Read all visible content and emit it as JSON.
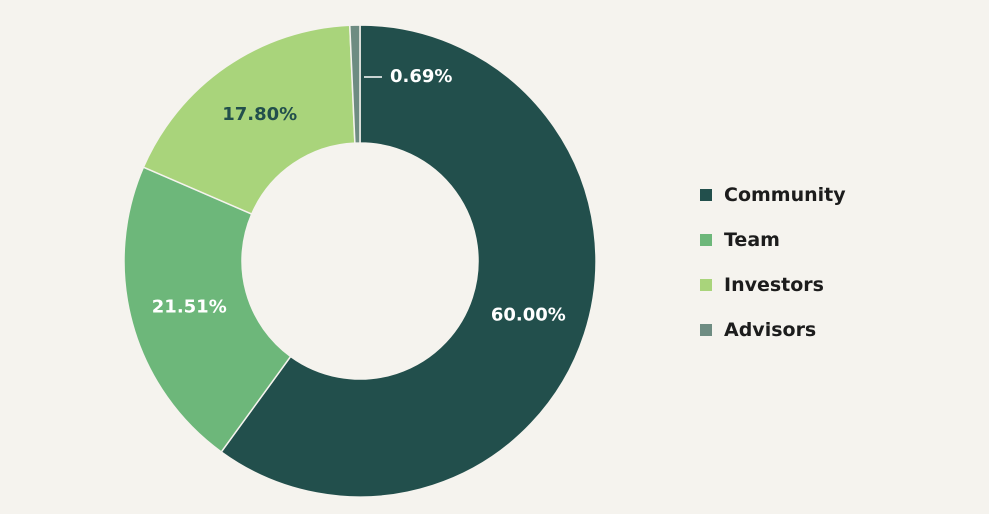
{
  "chart_data": {
    "type": "pie",
    "donut": true,
    "categories": [
      "Community",
      "Team",
      "Investors",
      "Advisors"
    ],
    "values": [
      60.0,
      21.51,
      17.8,
      0.69
    ],
    "data_labels": [
      "60.00%",
      "21.51%",
      "17.80%",
      "0.69%"
    ],
    "colors": [
      "#224f4c",
      "#6db77a",
      "#a9d47b",
      "#6e8c82"
    ],
    "label_colors": [
      "#ffffff",
      "#ffffff",
      "#224f4c",
      "#ffffff"
    ],
    "legend": {
      "position": "right",
      "items": [
        {
          "label": "Community",
          "color": "#224f4c"
        },
        {
          "label": "Team",
          "color": "#6db77a"
        },
        {
          "label": "Investors",
          "color": "#a9d47b"
        },
        {
          "label": "Advisors",
          "color": "#6e8c82"
        }
      ]
    }
  }
}
